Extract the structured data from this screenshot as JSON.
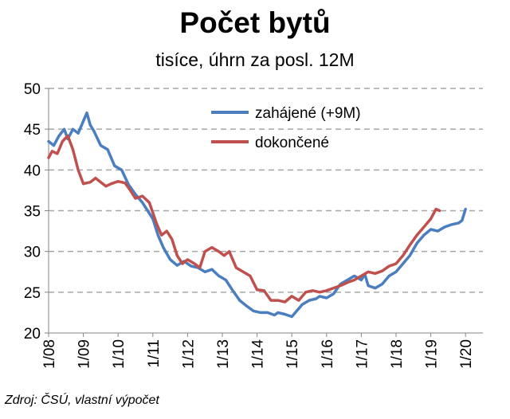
{
  "title": "Počet bytů",
  "subtitle": "tisíce, úhrn za posl. 12M",
  "source": "Zdroj: ČSÚ, vlastní výpočet",
  "chart_data": {
    "type": "line",
    "title": "Počet bytů",
    "subtitle": "tisíce, úhrn za posl. 12M",
    "xlabel": "",
    "ylabel": "",
    "ylim": [
      20,
      50
    ],
    "yticks": [
      20,
      25,
      30,
      35,
      40,
      45,
      50
    ],
    "xticks": [
      "1/08",
      "1/09",
      "1/10",
      "1/11",
      "1/12",
      "1/13",
      "1/14",
      "1/15",
      "1/16",
      "1/17",
      "1/18",
      "1/19",
      "1/20"
    ],
    "grid": "horizontal dashed",
    "legend_position": "top-center",
    "series": [
      {
        "name": "zahájené (+9M)",
        "color": "#4a7ebf",
        "x": [
          2008.0,
          2008.15,
          2008.3,
          2008.45,
          2008.55,
          2008.7,
          2008.85,
          2009.0,
          2009.1,
          2009.2,
          2009.3,
          2009.5,
          2009.7,
          2009.9,
          2010.1,
          2010.3,
          2010.5,
          2010.7,
          2010.85,
          2011.0,
          2011.15,
          2011.3,
          2011.5,
          2011.7,
          2011.9,
          2012.1,
          2012.3,
          2012.5,
          2012.7,
          2012.9,
          2013.1,
          2013.3,
          2013.5,
          2013.7,
          2013.9,
          2014.1,
          2014.3,
          2014.5,
          2014.6,
          2014.8,
          2015.0,
          2015.1,
          2015.3,
          2015.5,
          2015.7,
          2015.8,
          2016.0,
          2016.2,
          2016.4,
          2016.6,
          2016.8,
          2017.0,
          2017.1,
          2017.2,
          2017.4,
          2017.6,
          2017.8,
          2018.0,
          2018.2,
          2018.4,
          2018.6,
          2018.8,
          2019.0,
          2019.2,
          2019.4,
          2019.6,
          2019.8,
          2019.9,
          2020.0
        ],
        "values": [
          43.5,
          43.0,
          44.2,
          45.0,
          43.8,
          45.0,
          44.5,
          46.0,
          47.0,
          45.5,
          44.8,
          43.0,
          42.5,
          40.5,
          40.0,
          38.2,
          37.0,
          36.0,
          35.0,
          34.0,
          32.0,
          30.5,
          29.0,
          28.3,
          28.8,
          28.2,
          28.0,
          27.5,
          27.8,
          27.0,
          26.5,
          25.2,
          24.0,
          23.3,
          22.7,
          22.5,
          22.5,
          22.2,
          22.5,
          22.3,
          22.0,
          22.5,
          23.5,
          24.0,
          24.2,
          24.5,
          24.3,
          24.8,
          26.0,
          26.5,
          27.0,
          26.5,
          27.2,
          25.8,
          25.5,
          26.0,
          27.0,
          27.5,
          28.5,
          29.5,
          31.0,
          32.0,
          32.7,
          32.5,
          33.0,
          33.3,
          33.5,
          33.8,
          35.2
        ]
      },
      {
        "name": "dokončené",
        "color": "#c0504d",
        "x": [
          2008.0,
          2008.1,
          2008.25,
          2008.4,
          2008.55,
          2008.7,
          2008.85,
          2009.0,
          2009.2,
          2009.35,
          2009.5,
          2009.65,
          2009.8,
          2010.0,
          2010.2,
          2010.35,
          2010.5,
          2010.7,
          2010.9,
          2011.1,
          2011.25,
          2011.4,
          2011.55,
          2011.7,
          2011.85,
          2012.0,
          2012.2,
          2012.35,
          2012.5,
          2012.7,
          2012.9,
          2013.05,
          2013.2,
          2013.4,
          2013.6,
          2013.8,
          2014.0,
          2014.2,
          2014.4,
          2014.6,
          2014.8,
          2015.0,
          2015.2,
          2015.4,
          2015.6,
          2015.8,
          2016.0,
          2016.2,
          2016.4,
          2016.6,
          2016.8,
          2017.0,
          2017.2,
          2017.4,
          2017.6,
          2017.8,
          2018.0,
          2018.2,
          2018.4,
          2018.6,
          2018.8,
          2019.0,
          2019.15,
          2019.25
        ],
        "values": [
          41.5,
          42.3,
          42.0,
          43.5,
          44.2,
          42.5,
          40.0,
          38.3,
          38.5,
          39.0,
          38.5,
          38.0,
          38.3,
          38.6,
          38.4,
          37.5,
          36.5,
          36.8,
          36.0,
          33.5,
          32.0,
          32.5,
          31.5,
          29.5,
          28.5,
          29.0,
          28.5,
          28.0,
          30.0,
          30.5,
          30.0,
          29.5,
          30.0,
          28.0,
          27.5,
          27.0,
          25.3,
          25.2,
          24.0,
          24.0,
          23.8,
          24.5,
          24.0,
          25.0,
          25.2,
          25.0,
          25.2,
          25.5,
          25.8,
          26.2,
          26.5,
          27.0,
          27.5,
          27.3,
          27.6,
          28.2,
          28.5,
          29.5,
          30.8,
          32.0,
          33.0,
          34.0,
          35.2,
          35.0
        ]
      }
    ]
  }
}
